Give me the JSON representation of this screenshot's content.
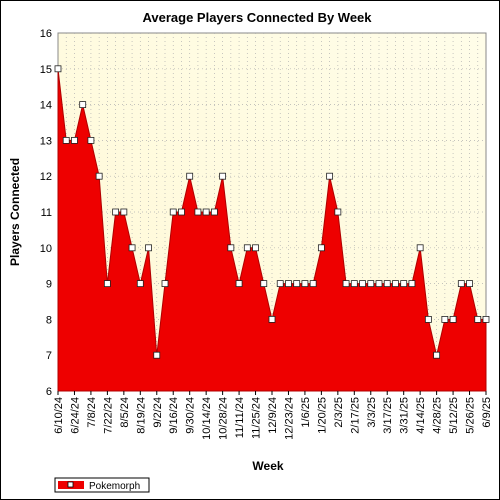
{
  "chart_data": {
    "type": "area",
    "title": "Average Players Connected By Week",
    "xlabel": "Week",
    "ylabel": "Players Connected",
    "ylim": [
      6,
      16
    ],
    "yticks": [
      6,
      7,
      8,
      9,
      10,
      11,
      12,
      13,
      14,
      15,
      16
    ],
    "grid": true,
    "legend_position": "bottom-left",
    "x_tick_labels": [
      "6/10/24",
      "6/24/24",
      "7/8/24",
      "7/22/24",
      "8/5/24",
      "8/19/24",
      "9/2/24",
      "9/16/24",
      "9/30/24",
      "10/14/24",
      "10/28/24",
      "11/11/24",
      "11/25/24",
      "12/9/24",
      "12/23/24",
      "1/6/25",
      "1/20/25",
      "2/3/25",
      "2/17/25",
      "3/3/25",
      "3/17/25",
      "3/31/25",
      "4/14/25",
      "4/28/25",
      "5/12/25",
      "5/26/25",
      "6/9/25"
    ],
    "series": [
      {
        "name": "Pokemorph",
        "color": "#ee0000",
        "x": [
          "6/10/24",
          "6/17/24",
          "6/24/24",
          "7/1/24",
          "7/8/24",
          "7/15/24",
          "7/22/24",
          "7/29/24",
          "8/5/24",
          "8/12/24",
          "8/19/24",
          "8/26/24",
          "9/2/24",
          "9/9/24",
          "9/16/24",
          "9/23/24",
          "9/30/24",
          "10/7/24",
          "10/14/24",
          "10/21/24",
          "10/28/24",
          "11/4/24",
          "11/11/24",
          "11/18/24",
          "11/25/24",
          "12/2/24",
          "12/9/24",
          "12/16/24",
          "12/23/24",
          "12/30/24",
          "1/6/25",
          "1/13/25",
          "1/20/25",
          "1/27/25",
          "2/3/25",
          "2/10/25",
          "2/17/25",
          "2/24/25",
          "3/3/25",
          "3/10/25",
          "3/17/25",
          "3/24/25",
          "3/31/25",
          "4/7/25",
          "4/14/25",
          "4/21/25",
          "4/28/25",
          "5/5/25",
          "5/12/25",
          "5/19/25",
          "5/26/25",
          "6/2/25",
          "6/9/25"
        ],
        "values": [
          15,
          13,
          13,
          14,
          13,
          12,
          9,
          11,
          11,
          10,
          9,
          10,
          7,
          9,
          11,
          11,
          12,
          11,
          11,
          11,
          12,
          10,
          9,
          10,
          10,
          9,
          8,
          9,
          9,
          9,
          9,
          9,
          10,
          12,
          11,
          9,
          9,
          9,
          9,
          9,
          9,
          9,
          9,
          9,
          10,
          8,
          7,
          8,
          8,
          9,
          9,
          8,
          8
        ]
      }
    ]
  }
}
